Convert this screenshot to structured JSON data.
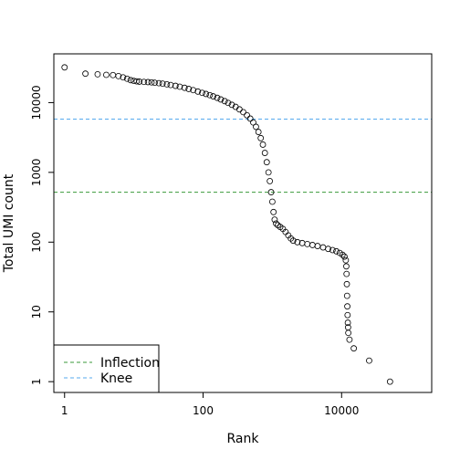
{
  "chart_data": {
    "type": "scatter",
    "title": "",
    "xlabel": "Rank",
    "ylabel": "Total UMI count",
    "x_scale": "log",
    "y_scale": "log",
    "xlim": [
      0.7,
      200000
    ],
    "ylim": [
      0.7,
      50000
    ],
    "grid": false,
    "x_ticks": [
      {
        "value": 1,
        "label": "1"
      },
      {
        "value": 100,
        "label": "100"
      },
      {
        "value": 10000,
        "label": "10000"
      }
    ],
    "y_ticks": [
      {
        "value": 1,
        "label": "1"
      },
      {
        "value": 10,
        "label": "10"
      },
      {
        "value": 100,
        "label": "100"
      },
      {
        "value": 1000,
        "label": "1000"
      },
      {
        "value": 10000,
        "label": "10000"
      }
    ],
    "reference_lines": [
      {
        "name": "Inflection",
        "y": 520,
        "color": "#3a9a3a",
        "style": "dashed"
      },
      {
        "name": "Knee",
        "y": 5800,
        "color": "#55aaee",
        "style": "dashed"
      }
    ],
    "legend": {
      "placement": "bottom-left",
      "entries": [
        {
          "label": "Inflection",
          "color": "#3a9a3a"
        },
        {
          "label": "Knee",
          "color": "#55aaee"
        }
      ]
    },
    "points": [
      [
        1,
        32000
      ],
      [
        2,
        26000
      ],
      [
        3,
        25500
      ],
      [
        4,
        25000
      ],
      [
        5,
        24800
      ],
      [
        6,
        24000
      ],
      [
        7,
        23000
      ],
      [
        8,
        22000
      ],
      [
        9,
        21000
      ],
      [
        10,
        20500
      ],
      [
        11,
        20200
      ],
      [
        12,
        20000
      ],
      [
        14,
        19800
      ],
      [
        16,
        19700
      ],
      [
        18,
        19500
      ],
      [
        20,
        19300
      ],
      [
        23,
        19000
      ],
      [
        26,
        18700
      ],
      [
        30,
        18300
      ],
      [
        34,
        17900
      ],
      [
        40,
        17400
      ],
      [
        46,
        16900
      ],
      [
        54,
        16300
      ],
      [
        62,
        15700
      ],
      [
        72,
        15100
      ],
      [
        84,
        14400
      ],
      [
        97,
        13800
      ],
      [
        110,
        13300
      ],
      [
        125,
        12800
      ],
      [
        140,
        12300
      ],
      [
        160,
        11700
      ],
      [
        180,
        11100
      ],
      [
        205,
        10500
      ],
      [
        230,
        9900
      ],
      [
        260,
        9300
      ],
      [
        295,
        8700
      ],
      [
        335,
        8000
      ],
      [
        380,
        7300
      ],
      [
        430,
        6600
      ],
      [
        480,
        5900
      ],
      [
        530,
        5200
      ],
      [
        580,
        4500
      ],
      [
        630,
        3800
      ],
      [
        680,
        3100
      ],
      [
        730,
        2500
      ],
      [
        780,
        1900
      ],
      [
        830,
        1400
      ],
      [
        880,
        1000
      ],
      [
        920,
        750
      ],
      [
        960,
        520
      ],
      [
        1000,
        380
      ],
      [
        1040,
        270
      ],
      [
        1080,
        210
      ],
      [
        1130,
        185
      ],
      [
        1200,
        175
      ],
      [
        1300,
        165
      ],
      [
        1420,
        155
      ],
      [
        1550,
        140
      ],
      [
        1700,
        125
      ],
      [
        1850,
        113
      ],
      [
        2000,
        105
      ],
      [
        2300,
        100
      ],
      [
        2700,
        97
      ],
      [
        3200,
        94
      ],
      [
        3800,
        91
      ],
      [
        4500,
        88
      ],
      [
        5400,
        84
      ],
      [
        6400,
        80
      ],
      [
        7400,
        77
      ],
      [
        8400,
        74
      ],
      [
        9400,
        70
      ],
      [
        10300,
        66
      ],
      [
        11000,
        62
      ],
      [
        11500,
        55
      ],
      [
        11700,
        45
      ],
      [
        11800,
        35
      ],
      [
        11900,
        25
      ],
      [
        12000,
        17
      ],
      [
        12100,
        12
      ],
      [
        12200,
        9
      ],
      [
        12300,
        7
      ],
      [
        12400,
        6
      ],
      [
        12500,
        5
      ],
      [
        13000,
        4
      ],
      [
        15000,
        3
      ],
      [
        25000,
        2
      ],
      [
        50000,
        1
      ]
    ]
  }
}
